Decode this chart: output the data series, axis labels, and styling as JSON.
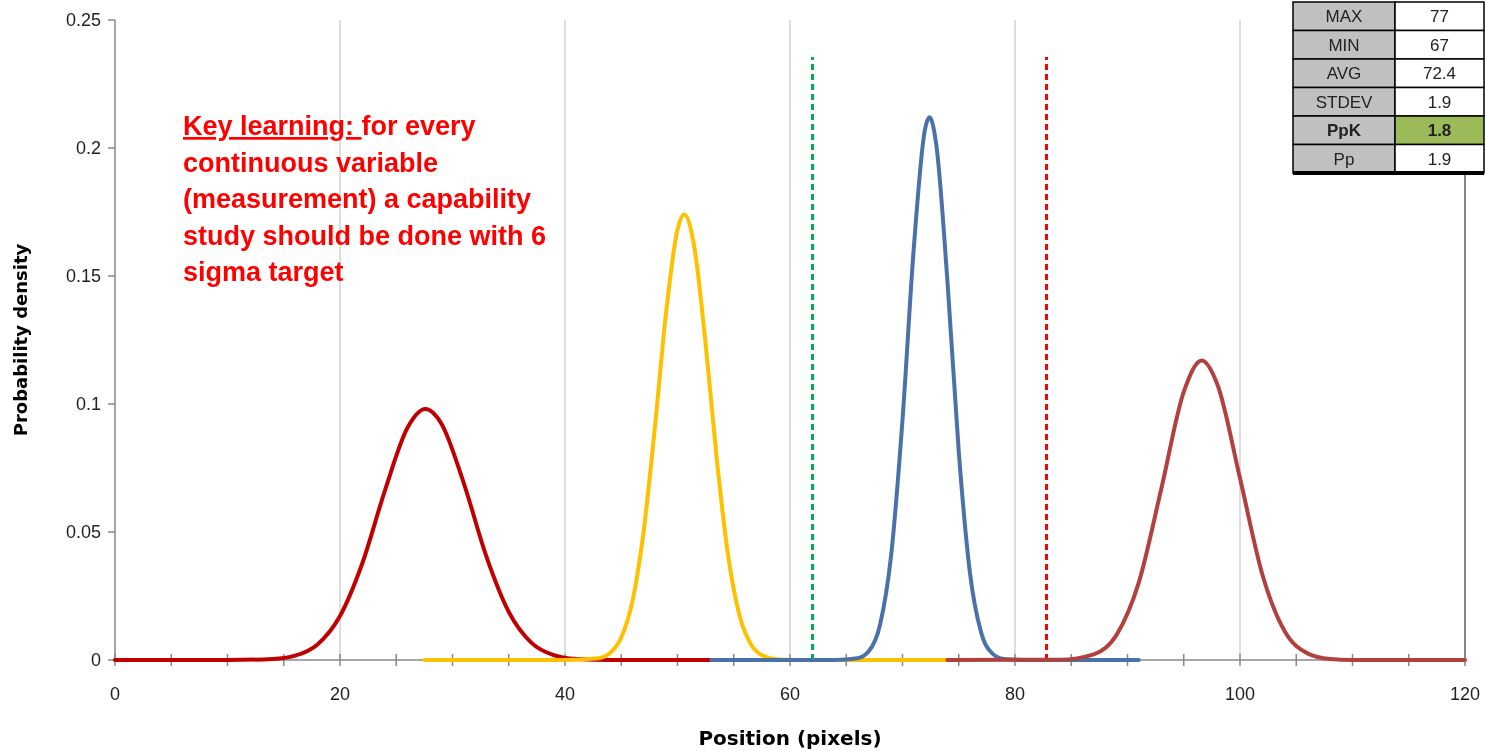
{
  "chart_data": {
    "type": "line",
    "xlabel": "Position (pixels)",
    "ylabel": "Probability density",
    "xlim": [
      0,
      120
    ],
    "ylim": [
      0,
      0.25
    ],
    "xticks": [
      0,
      {
        "value": 5,
        "label": null
      },
      {
        "value": 10,
        "label": null
      },
      {
        "value": 15,
        "label": null
      },
      20,
      {
        "value": 25,
        "label": null
      },
      {
        "value": 30,
        "label": null
      },
      {
        "value": 35,
        "label": null
      },
      40,
      {
        "value": 45,
        "label": null
      },
      {
        "value": 50,
        "label": null
      },
      {
        "value": 55,
        "label": null
      },
      60,
      {
        "value": 65,
        "label": null
      },
      {
        "value": 70,
        "label": null
      },
      {
        "value": 75,
        "label": null
      },
      80,
      {
        "value": 85,
        "label": null
      },
      {
        "value": 90,
        "label": null
      },
      {
        "value": 95,
        "label": null
      },
      100,
      {
        "value": 105,
        "label": null
      },
      {
        "value": 110,
        "label": null
      },
      {
        "value": 115,
        "label": null
      },
      120
    ],
    "yticks": [
      0,
      0.05,
      0.1,
      0.15,
      0.2,
      0.25
    ],
    "grid": "x",
    "marker": "none",
    "line_style": "solid",
    "series": [
      {
        "color": "#c00000",
        "x": [
          0,
          10,
          14,
          16,
          18,
          20,
          22,
          24,
          26,
          27.6,
          29,
          31,
          33,
          35,
          37,
          39,
          41,
          44,
          50,
          68
        ],
        "values": [
          0,
          0,
          0.0004,
          0.0017,
          0.0061,
          0.0172,
          0.038,
          0.0663,
          0.0907,
          0.098,
          0.0924,
          0.0691,
          0.0406,
          0.0188,
          0.0068,
          0.0019,
          0.0004,
          0,
          0,
          0
        ]
      },
      {
        "color": "#ffc000",
        "x": [
          27.5,
          40,
          43,
          44,
          45,
          46,
          47,
          48,
          49,
          50,
          50.6,
          51.5,
          52.5,
          53.5,
          54.5,
          55.5,
          56.5,
          57.5,
          59,
          62,
          74
        ],
        "values": [
          0,
          0,
          0.0007,
          0.0027,
          0.0088,
          0.0231,
          0.0506,
          0.0914,
          0.1363,
          0.1681,
          0.174,
          0.1611,
          0.1234,
          0.0781,
          0.0408,
          0.0176,
          0.0063,
          0.0019,
          0.0002,
          0,
          0
        ]
      },
      {
        "color": "#4a72a8",
        "x": [
          53,
          64,
          66,
          67,
          68,
          69,
          70,
          71,
          72,
          72.4,
          73,
          74,
          75,
          76,
          77,
          78,
          79,
          81,
          91
        ],
        "values": [
          0,
          0,
          0.0007,
          0.0034,
          0.0137,
          0.0413,
          0.0938,
          0.1607,
          0.2073,
          0.212,
          0.2014,
          0.1476,
          0.0815,
          0.0339,
          0.0106,
          0.0025,
          0.0004,
          0,
          0
        ]
      },
      {
        "color": "#b0413e",
        "x": [
          74,
          84,
          87,
          89,
          91,
          93,
          95,
          96.6,
          98,
          100,
          102,
          104,
          106,
          108,
          110,
          120
        ],
        "values": [
          0,
          0.0001,
          0.0022,
          0.0096,
          0.0302,
          0.0668,
          0.1047,
          0.117,
          0.1075,
          0.071,
          0.0332,
          0.011,
          0.0026,
          0.0004,
          0,
          0
        ]
      }
    ],
    "ref_lines": [
      {
        "axis": "x",
        "value": 62,
        "color": "#00b050",
        "line_style": "dashed"
      },
      {
        "axis": "x",
        "value": 82.8,
        "color": "#ff0000",
        "line_style": "dashed"
      }
    ],
    "annotations": [
      "Key learning: ",
      "for every continuous variable (measurement) a capability study should be done with 6 sigma target",
      "MAX",
      "77",
      "MIN",
      "67",
      "AVG",
      "72.4",
      "STDEV",
      "1.9",
      "PpK",
      "1.8",
      "Pp",
      "1.9"
    ]
  }
}
